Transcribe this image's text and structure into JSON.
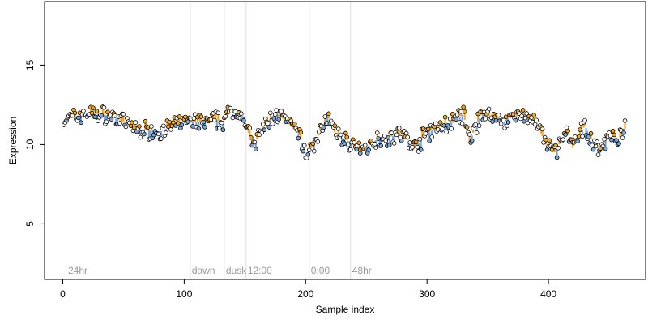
{
  "chart_data": {
    "type": "scatter",
    "xlabel": "Sample index",
    "ylabel": "Expression",
    "xlim": [
      -15,
      480
    ],
    "ylim": [
      1.5,
      19.0
    ],
    "x_ticks": [
      0,
      100,
      200,
      300,
      400
    ],
    "y_ticks": [
      5,
      10,
      15
    ],
    "grid": false,
    "legend": "none",
    "phase_markers": [
      {
        "x": 3,
        "label": "24hr",
        "line": false
      },
      {
        "x": 105,
        "label": "dawn",
        "line": true
      },
      {
        "x": 133,
        "label": "dusk",
        "line": true
      },
      {
        "x": 151,
        "label": "12:00",
        "line": true
      },
      {
        "x": 203,
        "label": "0:00",
        "line": true
      },
      {
        "x": 237,
        "label": "48hr",
        "line": true
      }
    ],
    "colors": {
      "point_fill_positive": "#f5a623",
      "point_fill_negative": "#7aa6dc",
      "bar_positive": "#f5a623",
      "bar_negative": "#7aa6dc",
      "point_stroke": "#000000",
      "phase_line": "#dddddd",
      "phase_label": "#9a9a9a"
    },
    "trend_knots": [
      [
        0,
        11.5
      ],
      [
        20,
        12.0
      ],
      [
        40,
        11.8
      ],
      [
        60,
        11.0
      ],
      [
        80,
        10.8
      ],
      [
        100,
        11.5
      ],
      [
        110,
        11.4
      ],
      [
        132,
        11.5
      ],
      [
        140,
        12.2
      ],
      [
        148,
        11.8
      ],
      [
        157,
        9.9
      ],
      [
        165,
        11.0
      ],
      [
        175,
        12.0
      ],
      [
        185,
        11.4
      ],
      [
        195,
        10.6
      ],
      [
        200,
        9.3
      ],
      [
        210,
        10.4
      ],
      [
        218,
        11.8
      ],
      [
        225,
        10.6
      ],
      [
        238,
        10.1
      ],
      [
        245,
        9.5
      ],
      [
        260,
        10.4
      ],
      [
        280,
        10.6
      ],
      [
        290,
        9.8
      ],
      [
        300,
        10.8
      ],
      [
        320,
        11.4
      ],
      [
        330,
        11.9
      ],
      [
        335,
        10.2
      ],
      [
        345,
        12.0
      ],
      [
        360,
        11.5
      ],
      [
        380,
        11.9
      ],
      [
        390,
        11.4
      ],
      [
        398,
        10.0
      ],
      [
        405,
        9.5
      ],
      [
        415,
        10.8
      ],
      [
        420,
        9.8
      ],
      [
        430,
        11.2
      ],
      [
        437,
        10.0
      ],
      [
        443,
        9.6
      ],
      [
        450,
        10.8
      ],
      [
        458,
        10.2
      ],
      [
        462,
        11.0
      ]
    ],
    "noise_amplitude": 0.45,
    "point_count": 463,
    "x_start": 1,
    "x_step": 1
  }
}
